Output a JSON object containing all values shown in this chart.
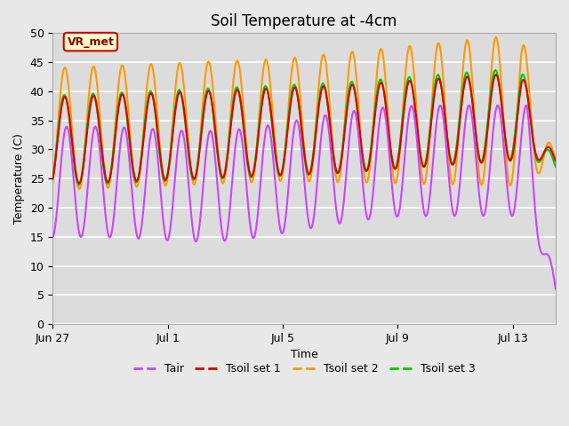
{
  "title": "Soil Temperature at -4cm",
  "xlabel": "Time",
  "ylabel": "Temperature (C)",
  "ylim": [
    0,
    50
  ],
  "xlim_days": [
    0,
    17.5
  ],
  "x_ticks_labels": [
    "Jun 27",
    "Jul 1",
    "Jul 5",
    "Jul 9",
    "Jul 13"
  ],
  "x_ticks_pos": [
    0,
    4,
    8,
    12,
    16
  ],
  "figure_bg_color": "#e8e8e8",
  "plot_bg_color": "#dcdcdc",
  "grid_color": "#ffffff",
  "lines": {
    "Tair": {
      "color": "#cc44ff",
      "lw": 1.5
    },
    "Tsoil set 1": {
      "color": "#dd0000",
      "lw": 1.5
    },
    "Tsoil set 2": {
      "color": "#ff9900",
      "lw": 1.5
    },
    "Tsoil set 3": {
      "color": "#00cc00",
      "lw": 1.5
    }
  },
  "vr_met_box": {
    "text": "VR_met",
    "facecolor": "#ffffcc",
    "edgecolor": "#cc0000",
    "text_color": "#880000"
  },
  "title_fontsize": 12,
  "axis_label_fontsize": 9,
  "tick_fontsize": 9,
  "legend_fontsize": 9,
  "yticks": [
    0,
    5,
    10,
    15,
    20,
    25,
    30,
    35,
    40,
    45,
    50
  ]
}
